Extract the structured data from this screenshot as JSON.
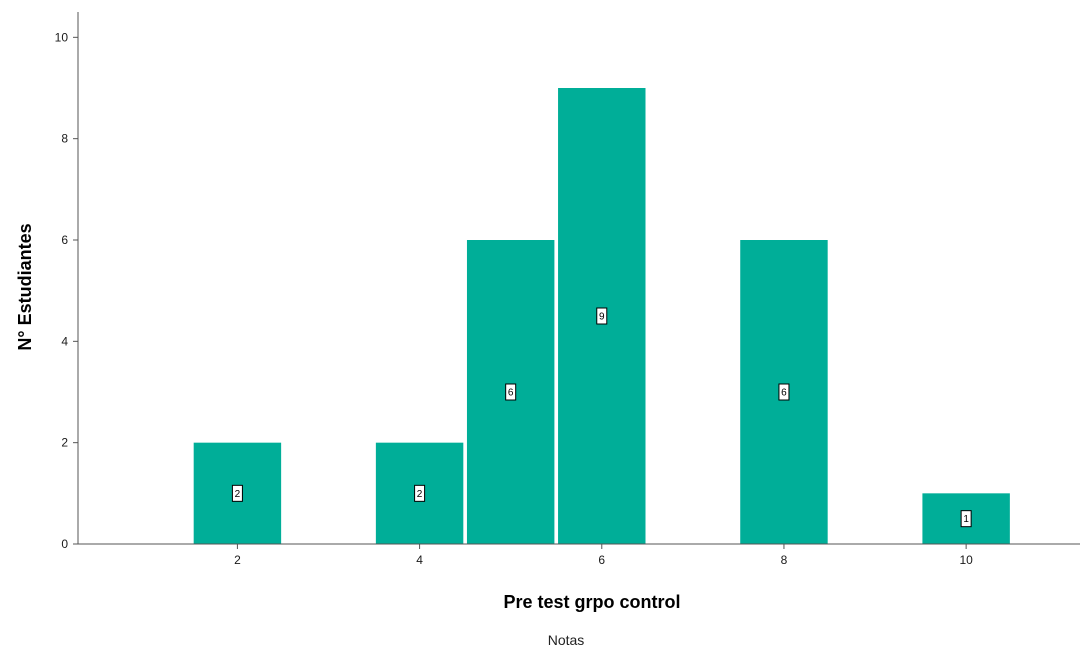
{
  "chart_data": {
    "type": "bar",
    "x": [
      2,
      4,
      5,
      6,
      8,
      10
    ],
    "values": [
      2,
      2,
      6,
      9,
      6,
      1
    ],
    "data_labels": [
      "2",
      "2",
      "6",
      "9",
      "6",
      "1"
    ],
    "x_ticks": [
      2,
      4,
      6,
      8,
      10
    ],
    "x_tick_labels": [
      "2",
      "4",
      "6",
      "8",
      "10"
    ],
    "y_ticks": [
      0,
      2,
      4,
      6,
      8,
      10
    ],
    "y_tick_labels": [
      "0",
      "2",
      "4",
      "6",
      "8",
      "10"
    ],
    "xlim": [
      0.25,
      11.25
    ],
    "ylim": [
      0,
      10.5
    ],
    "xlabel": "Pre test grpo control",
    "ylabel": "N° Estudiantes",
    "caption": "Notas",
    "grid": false,
    "bar_color": "#00ae98"
  }
}
